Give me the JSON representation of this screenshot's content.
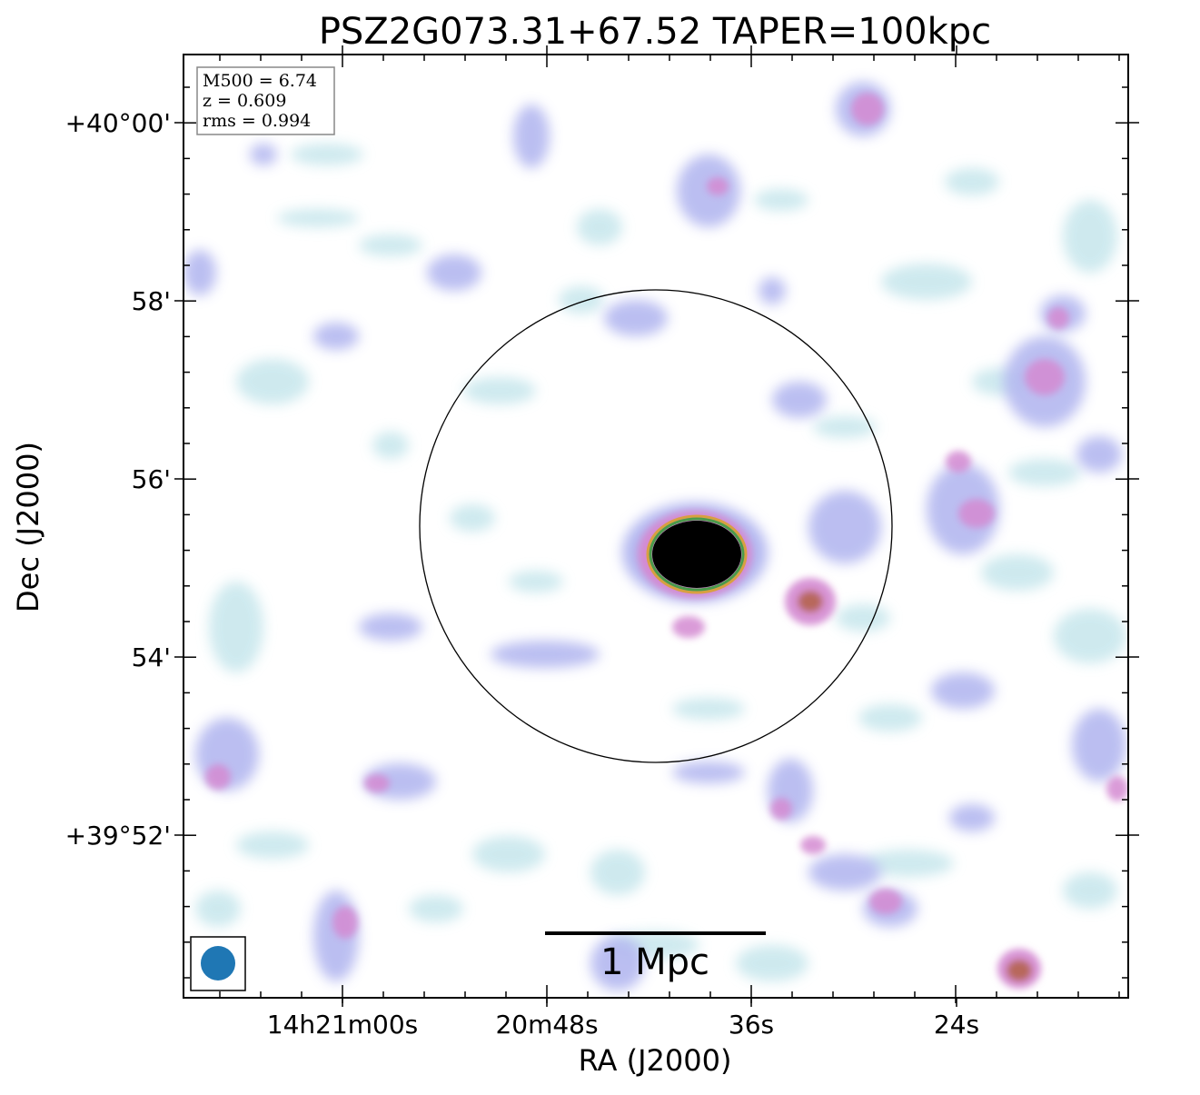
{
  "title": "PSZ2G073.31+67.52 TAPER=100kpc",
  "axes": {
    "xlabel": "RA (J2000)",
    "ylabel": "Dec (J2000)",
    "x_tick_labels": [
      "14h21m00s",
      "20m48s",
      "36s",
      "24s"
    ],
    "y_tick_labels": [
      "+40°00'",
      "58'",
      "56'",
      "54'",
      "+39°52'"
    ]
  },
  "info_box": {
    "line1": "M500 = 6.74",
    "line2": "z = 0.609",
    "line3": "rms = 0.994"
  },
  "scalebar": {
    "label": "1 Mpc"
  },
  "colors": {
    "beam": "#1f77b4",
    "low_emission": "#c6e6ec",
    "mid_emission": "#b4b8f0",
    "high_emission": "#d48ad2",
    "peak_emission": "#b8685c",
    "core": "#000000"
  }
}
